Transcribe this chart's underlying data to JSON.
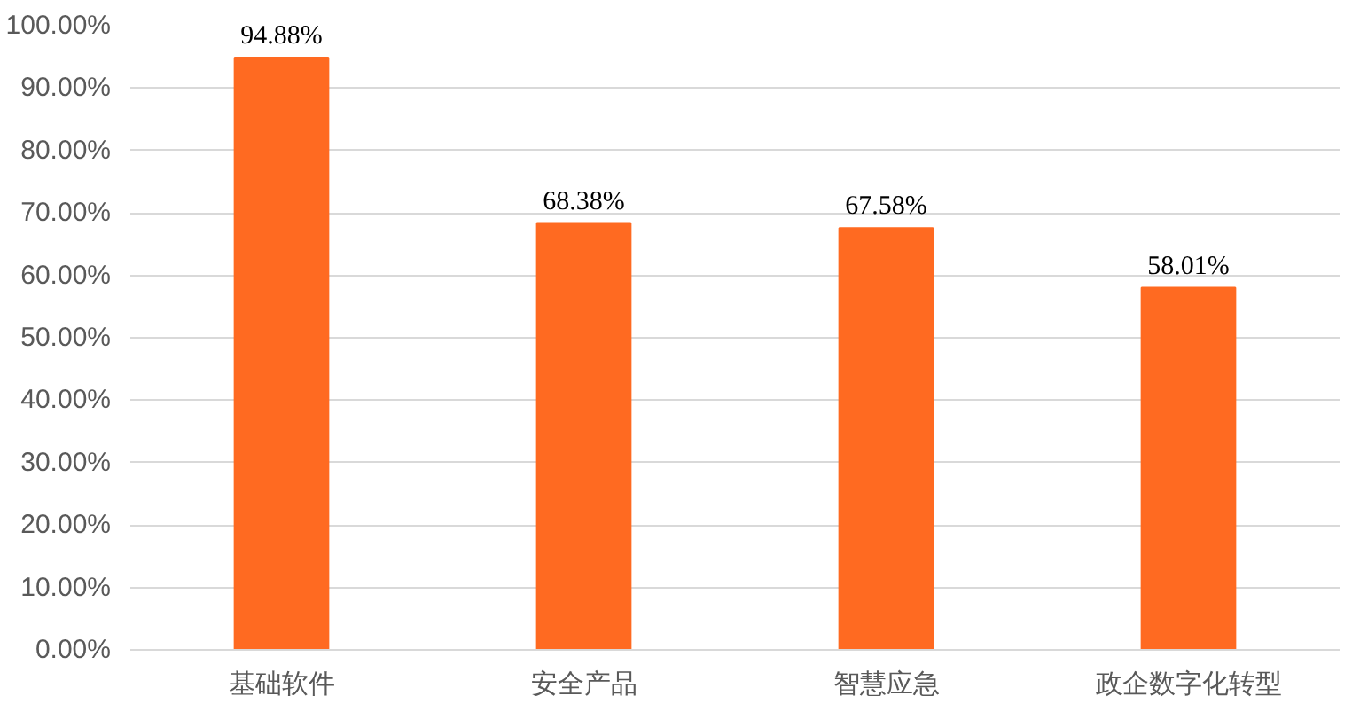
{
  "chart_data": {
    "type": "bar",
    "categories": [
      "基础软件",
      "安全产品",
      "智慧应急",
      "政企数字化转型"
    ],
    "values": [
      94.88,
      68.38,
      67.58,
      58.01
    ],
    "value_labels": [
      "94.88%",
      "68.38%",
      "67.58%",
      "58.01%"
    ],
    "color": "#ff6a21",
    "ylim": [
      0,
      100
    ],
    "yticks": [
      {
        "value": 0,
        "label": "0.00%"
      },
      {
        "value": 10,
        "label": "10.00%"
      },
      {
        "value": 20,
        "label": "20.00%"
      },
      {
        "value": 30,
        "label": "30.00%"
      },
      {
        "value": 40,
        "label": "40.00%"
      },
      {
        "value": 50,
        "label": "50.00%"
      },
      {
        "value": 60,
        "label": "60.00%"
      },
      {
        "value": 70,
        "label": "70.00%"
      },
      {
        "value": 80,
        "label": "80.00%"
      },
      {
        "value": 90,
        "label": "90.00%"
      },
      {
        "value": 100,
        "label": "100.00%"
      }
    ],
    "grid": "y"
  }
}
